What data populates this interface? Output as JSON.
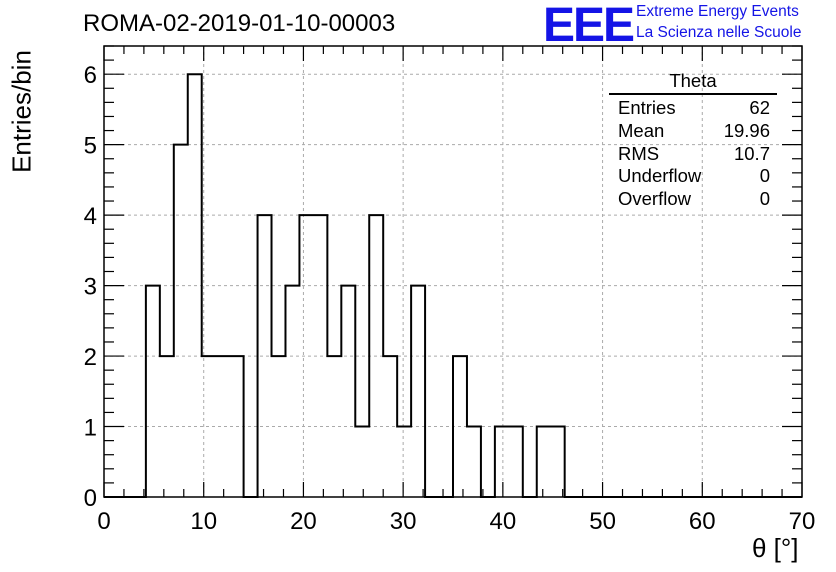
{
  "title": "ROMA-02-2019-01-10-00003",
  "logo": {
    "mark": "EEE",
    "line1": "Extreme Energy Events",
    "line2": "La Scienza nelle Scuole",
    "color": "#1414e6"
  },
  "stats_box": {
    "name": "Theta",
    "rows": [
      {
        "label": "Entries",
        "value": "62"
      },
      {
        "label": "Mean",
        "value": "19.96"
      },
      {
        "label": "RMS",
        "value": "10.7"
      },
      {
        "label": "Underflow",
        "value": "0"
      },
      {
        "label": "Overflow",
        "value": "0"
      }
    ]
  },
  "chart_data": {
    "type": "bar",
    "style": "step-histogram",
    "xlabel": "θ [°]",
    "ylabel": "Entries/bin",
    "xlim": [
      0,
      70
    ],
    "ylim": [
      0,
      6.4
    ],
    "xticks": [
      0,
      10,
      20,
      30,
      40,
      50,
      60,
      70
    ],
    "yticks": [
      0,
      1,
      2,
      3,
      4,
      5,
      6
    ],
    "grid": true,
    "bin_width": 1.4,
    "bin_edges_start": 0,
    "values": [
      0,
      0,
      0,
      3,
      2,
      5,
      6,
      2,
      2,
      2,
      0,
      4,
      2,
      3,
      4,
      4,
      2,
      3,
      1,
      4,
      2,
      1,
      3,
      0,
      0,
      2,
      1,
      0,
      1,
      1,
      0,
      1,
      1,
      0,
      0,
      0,
      0,
      0,
      0,
      0,
      0,
      0,
      0,
      0,
      0,
      0,
      0,
      0,
      0,
      0
    ]
  }
}
